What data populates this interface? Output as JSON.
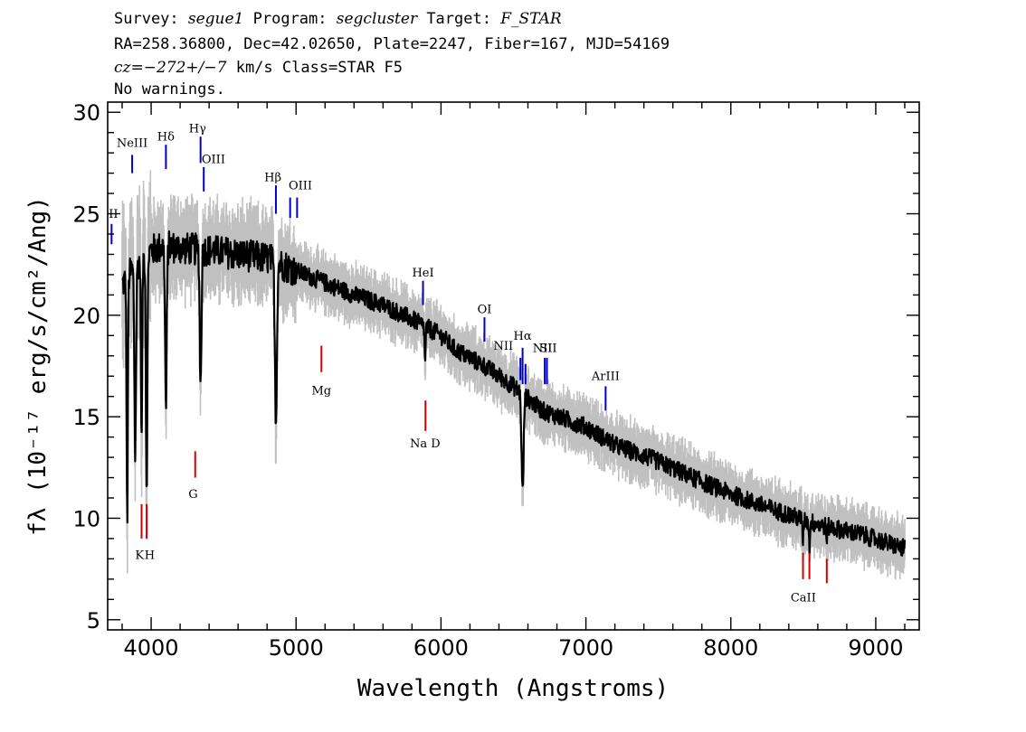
{
  "header": {
    "line1": [
      {
        "text": "Survey: ",
        "italic": false
      },
      {
        "text": "segue1",
        "italic": true
      },
      {
        "text": " Program: ",
        "italic": false
      },
      {
        "text": "segcluster",
        "italic": true
      },
      {
        "text": " Target: ",
        "italic": false
      },
      {
        "text": "F_STAR",
        "italic": true
      }
    ],
    "line2": "RA=258.36800, Dec=42.02650, Plate=2247, Fiber=167, MJD=54169",
    "line3": [
      {
        "text": "cz=",
        "italic": true
      },
      {
        "text": "−272+/−7",
        "italic": true
      },
      {
        "text": " km/s Class=STAR F5",
        "italic": false
      }
    ],
    "line4": "No warnings."
  },
  "chart_data": {
    "type": "line",
    "xlabel": "Wavelength (Angstroms)",
    "ylabel": "fλ (10⁻¹⁷ erg/s/cm²/Ang)",
    "xlim": [
      3700,
      9300
    ],
    "ylim": [
      4.5,
      30.5
    ],
    "x_ticks": [
      4000,
      5000,
      6000,
      7000,
      8000,
      9000
    ],
    "y_ticks": [
      5,
      10,
      15,
      20,
      25,
      30
    ],
    "x_range_data": [
      3800,
      9200
    ],
    "continuum": [
      [
        3800,
        21.5
      ],
      [
        3900,
        22.5
      ],
      [
        4000,
        23.2
      ],
      [
        4100,
        23.4
      ],
      [
        4200,
        23.3
      ],
      [
        4400,
        23.2
      ],
      [
        4600,
        23.0
      ],
      [
        4800,
        22.8
      ],
      [
        5000,
        22.2
      ],
      [
        5200,
        21.6
      ],
      [
        5400,
        21.0
      ],
      [
        5600,
        20.5
      ],
      [
        5800,
        19.8
      ],
      [
        6000,
        19.0
      ],
      [
        6100,
        18.3
      ],
      [
        6300,
        17.5
      ],
      [
        6500,
        16.5
      ],
      [
        6700,
        15.3
      ],
      [
        7000,
        14.5
      ],
      [
        7200,
        13.6
      ],
      [
        7500,
        12.8
      ],
      [
        7800,
        11.8
      ],
      [
        8000,
        11.2
      ],
      [
        8300,
        10.4
      ],
      [
        8600,
        9.7
      ],
      [
        8900,
        9.2
      ],
      [
        9200,
        8.5
      ]
    ],
    "absorption": [
      [
        3835,
        9.8,
        6
      ],
      [
        3890,
        13.2,
        8
      ],
      [
        3934,
        13.5,
        6
      ],
      [
        3969,
        11.5,
        7
      ],
      [
        4102,
        15.4,
        8
      ],
      [
        4341,
        16.5,
        8
      ],
      [
        4861,
        15.0,
        10
      ],
      [
        6563,
        11.3,
        10
      ],
      [
        5890,
        17.7,
        5
      ],
      [
        8498,
        8.6,
        4
      ],
      [
        8542,
        8.4,
        4
      ],
      [
        8662,
        8.6,
        4
      ]
    ],
    "emission_lines": [
      {
        "label": "NeIII",
        "x": 3869,
        "y_top": 27.0,
        "y_bottom": 27.9,
        "label_x": 3869,
        "label_y": 28.3
      },
      {
        "label": "Hδ",
        "x": 4102,
        "y_top": 27.2,
        "y_bottom": 28.4,
        "label_x": 4102,
        "label_y": 28.6
      },
      {
        "label": "Hγ",
        "x": 4341,
        "y_top": 27.5,
        "y_bottom": 28.8,
        "label_x": 4320,
        "label_y": 29.0
      },
      {
        "label": "OIII",
        "x": 4363,
        "y_top": 26.1,
        "y_bottom": 27.3,
        "label_x": 4430,
        "label_y": 27.5
      },
      {
        "label": "II",
        "x": 3727,
        "y_top": 23.5,
        "y_bottom": 24.5,
        "label_x": 3740,
        "label_y": 24.8
      },
      {
        "label": "Hβ",
        "x": 4861,
        "y_top": 25.0,
        "y_bottom": 26.4,
        "label_x": 4840,
        "label_y": 26.6
      },
      {
        "label": "OIII",
        "x": 4959,
        "y_top": 24.8,
        "y_bottom": 25.8,
        "label_x": 5030,
        "label_y": 26.2
      },
      {
        "label": "OIII",
        "x": 5007,
        "y_top": 24.8,
        "y_bottom": 25.8,
        "label_x": "",
        "label_y": ""
      },
      {
        "label": "HeI",
        "x": 5876,
        "y_top": 20.5,
        "y_bottom": 21.7,
        "label_x": 5876,
        "label_y": 21.9
      },
      {
        "label": "OI",
        "x": 6300,
        "y_top": 18.7,
        "y_bottom": 19.9,
        "label_x": 6300,
        "label_y": 20.1
      },
      {
        "label": "NII",
        "x": 6548,
        "y_top": 16.8,
        "y_bottom": 17.9,
        "label_x": 6430,
        "label_y": 18.3
      },
      {
        "label": "Hα",
        "x": 6563,
        "y_top": 16.6,
        "y_bottom": 18.4,
        "label_x": 6563,
        "label_y": 18.8
      },
      {
        "label": "NII",
        "x": 6583,
        "y_top": 16.6,
        "y_bottom": 17.6,
        "label_x": "",
        "label_y": ""
      },
      {
        "label": "NII",
        "x": 6716,
        "y_top": 16.6,
        "y_bottom": 17.9,
        "label_x": 6700,
        "label_y": 18.2
      },
      {
        "label": "SII",
        "x": 6731,
        "y_top": 16.6,
        "y_bottom": 17.9,
        "label_x": 6740,
        "label_y": 18.2
      },
      {
        "label": "ArIII",
        "x": 7136,
        "y_top": 15.3,
        "y_bottom": 16.5,
        "label_x": 7136,
        "label_y": 16.8
      }
    ],
    "absorption_lines": [
      {
        "label": "K",
        "x": 3934,
        "y_top": 9.0,
        "y_bottom": 10.7,
        "label_x": 3920,
        "label_y": 8.0
      },
      {
        "label": "H",
        "x": 3969,
        "y_top": 9.0,
        "y_bottom": 10.7,
        "label_x": 3990,
        "label_y": 8.0
      },
      {
        "label": "G",
        "x": 4304,
        "y_top": 12.0,
        "y_bottom": 13.3,
        "label_x": 4290,
        "label_y": 11.0
      },
      {
        "label": "Mg",
        "x": 5175,
        "y_top": 17.2,
        "y_bottom": 18.5,
        "label_x": 5175,
        "label_y": 16.1
      },
      {
        "label": "Na  D",
        "x": 5893,
        "y_top": 14.3,
        "y_bottom": 15.8,
        "label_x": 5890,
        "label_y": 13.5
      },
      {
        "label": "CaII",
        "x": 8498,
        "y_top": 7.0,
        "y_bottom": 8.3,
        "label_x": 8500,
        "label_y": 5.9
      },
      {
        "label": "",
        "x": 8542,
        "y_top": 7.0,
        "y_bottom": 8.3,
        "label_x": "",
        "label_y": ""
      },
      {
        "label": "",
        "x": 8662,
        "y_top": 6.8,
        "y_bottom": 8.0,
        "label_x": "",
        "label_y": ""
      }
    ],
    "colors": {
      "model": "#000000",
      "noise": "#c0c0c0",
      "emission": "#0000cc",
      "absorption": "#d40000",
      "axis": "#000000"
    }
  }
}
